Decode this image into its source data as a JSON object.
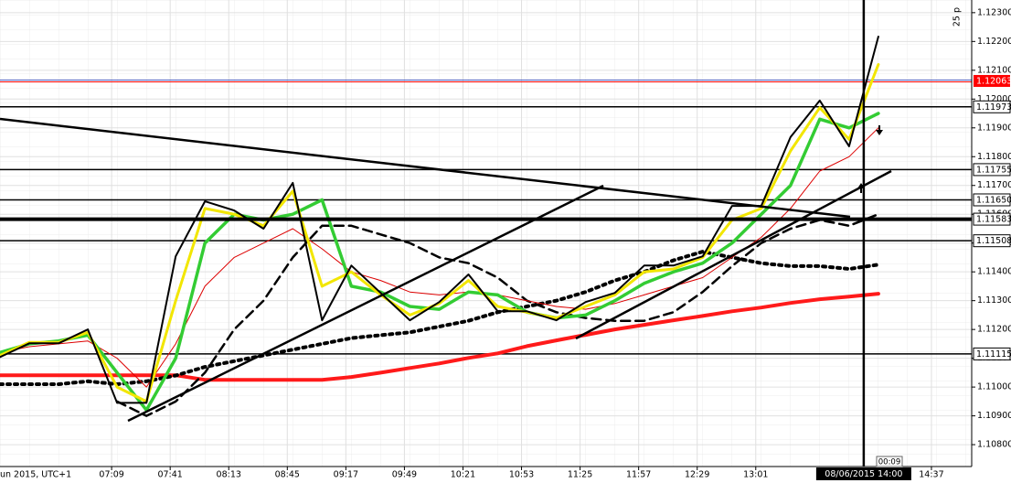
{
  "chart_data": {
    "type": "line",
    "date_label": "un 2015, UTC+1",
    "period_label": "25 p",
    "countdown": "00:09",
    "x": [
      "06:08",
      "06:24",
      "06:40",
      "06:56",
      "07:12",
      "07:28",
      "07:44",
      "08:00",
      "08:16",
      "08:32",
      "08:48",
      "09:04",
      "09:20",
      "09:36",
      "09:52",
      "10:08",
      "10:24",
      "10:40",
      "10:56",
      "11:12",
      "11:28",
      "11:44",
      "12:00",
      "12:16",
      "12:32",
      "12:48",
      "13:04",
      "13:20",
      "13:36",
      "13:52",
      "14:08"
    ],
    "xlim": [
      "06:08",
      "14:59"
    ],
    "xticks": [
      "07:09",
      "07:41",
      "08:13",
      "08:45",
      "09:17",
      "09:49",
      "10:21",
      "10:53",
      "11:25",
      "11:57",
      "12:29",
      "13:01",
      "14:37"
    ],
    "ylim": [
      1.10724,
      1.12344
    ],
    "yticks": [
      {
        "value": 1.123,
        "label": "1.12300"
      },
      {
        "value": 1.122,
        "label": "1.12200"
      },
      {
        "value": 1.121,
        "label": "1.12100"
      },
      {
        "value": 1.12,
        "label": "1.12000"
      },
      {
        "value": 1.119,
        "label": "1.11900"
      },
      {
        "value": 1.118,
        "label": "1.11800"
      },
      {
        "value": 1.117,
        "label": "1.11700"
      },
      {
        "value": 1.116,
        "label": "1.11600"
      },
      {
        "value": 1.115,
        "label": "1.11500"
      },
      {
        "value": 1.114,
        "label": "1.11400"
      },
      {
        "value": 1.113,
        "label": "1.11300"
      },
      {
        "value": 1.112,
        "label": "1.11200"
      },
      {
        "value": 1.111,
        "label": "1.11100"
      },
      {
        "value": 1.11,
        "label": "1.11000"
      },
      {
        "value": 1.109,
        "label": "1.10900"
      },
      {
        "value": 1.108,
        "label": "1.10800"
      }
    ],
    "grid": true,
    "series": [
      {
        "name": "slow-ma",
        "color": "#ff1a1a",
        "width": 4,
        "dash": "none",
        "values": [
          1.11041,
          1.11041,
          1.11041,
          1.11041,
          1.11041,
          1.11041,
          1.11041,
          1.11025,
          1.11025,
          1.11025,
          1.11025,
          1.11025,
          1.11035,
          1.1105,
          1.11066,
          1.11082,
          1.11101,
          1.11117,
          1.11142,
          1.11162,
          1.11181,
          1.112,
          1.11216,
          1.11232,
          1.11247,
          1.11263,
          1.11276,
          1.11292,
          1.11305,
          1.11314,
          1.11324
        ]
      },
      {
        "name": "dotted-ma",
        "color": "#000000",
        "width": 4,
        "dash": "3 5",
        "values": [
          1.1101,
          1.1101,
          1.1101,
          1.1102,
          1.1101,
          1.1102,
          1.1104,
          1.1107,
          1.1109,
          1.1111,
          1.1113,
          1.1115,
          1.1117,
          1.1118,
          1.1119,
          1.1121,
          1.1123,
          1.1126,
          1.1128,
          1.113,
          1.1133,
          1.1137,
          1.114,
          1.1144,
          1.1147,
          1.1145,
          1.1143,
          1.1142,
          1.1142,
          1.1141,
          1.11425
        ]
      },
      {
        "name": "dashed-ma",
        "color": "#000000",
        "width": 2.5,
        "dash": "10 6",
        "values": [
          null,
          null,
          null,
          null,
          1.1095,
          1.109,
          1.1095,
          1.1105,
          1.112,
          1.113,
          1.1145,
          1.1156,
          1.1156,
          1.1153,
          1.115,
          1.1145,
          1.1143,
          1.1138,
          1.113,
          1.1126,
          1.1124,
          1.1123,
          1.1123,
          1.1126,
          1.1133,
          1.1142,
          1.115,
          1.1155,
          1.1158,
          1.1156,
          1.116
        ]
      },
      {
        "name": "red-ma",
        "color": "#dd0000",
        "width": 1,
        "dash": "none",
        "values": [
          1.1112,
          1.1114,
          1.1115,
          1.1116,
          1.111,
          1.11,
          1.1115,
          1.1135,
          1.1145,
          1.115,
          1.1155,
          1.1148,
          1.114,
          1.1137,
          1.1133,
          1.1132,
          1.1133,
          1.1132,
          1.113,
          1.1128,
          1.1127,
          1.1129,
          1.1132,
          1.1135,
          1.1138,
          1.1145,
          1.1152,
          1.1162,
          1.1175,
          1.118,
          1.119
        ]
      },
      {
        "name": "green-ma",
        "color": "#33cc33",
        "width": 3.5,
        "dash": "none",
        "values": [
          1.1112,
          1.1115,
          1.1116,
          1.1118,
          1.1105,
          1.1092,
          1.111,
          1.115,
          1.116,
          1.1158,
          1.116,
          1.1165,
          1.1135,
          1.1133,
          1.1128,
          1.1127,
          1.1133,
          1.1132,
          1.1126,
          1.1124,
          1.1125,
          1.113,
          1.1136,
          1.114,
          1.1143,
          1.115,
          1.116,
          1.117,
          1.1193,
          1.119,
          1.1195
        ]
      },
      {
        "name": "yellow-ma",
        "color": "#f2e600",
        "width": 3,
        "dash": "none",
        "values": [
          1.1111,
          1.11155,
          1.11155,
          1.1119,
          1.11,
          1.1095,
          1.113,
          1.1162,
          1.116,
          1.1156,
          1.1168,
          1.1135,
          1.114,
          1.1132,
          1.1125,
          1.1129,
          1.1137,
          1.1128,
          1.1126,
          1.1124,
          1.1128,
          1.1132,
          1.114,
          1.1141,
          1.1145,
          1.1158,
          1.1162,
          1.1182,
          1.1197,
          1.1186,
          1.1212
        ]
      },
      {
        "name": "price",
        "color": "#000000",
        "width": 2,
        "dash": "none",
        "values": [
          1.11104,
          1.11152,
          1.11152,
          1.112,
          1.10945,
          1.10945,
          1.11454,
          1.11645,
          1.11613,
          1.1155,
          1.11709,
          1.11232,
          1.11422,
          1.11327,
          1.11232,
          1.11295,
          1.11391,
          1.11263,
          1.11263,
          1.11232,
          1.11295,
          1.11327,
          1.11422,
          1.11422,
          1.11454,
          1.11629,
          1.11629,
          1.11868,
          1.11995,
          1.11836,
          1.12217
        ]
      }
    ],
    "levels": {
      "values": [
        1.11973,
        1.11755,
        1.1165,
        1.11583,
        1.11508,
        1.11115
      ],
      "value_labels": [
        "1.11973",
        "1.11755",
        "1.11650",
        "1.11583",
        "1.11508",
        "1.11115"
      ],
      "color": "#000000"
    },
    "current_price": {
      "value": 1.12063,
      "label": "1.12063",
      "color": "#ff0000"
    },
    "crosshair": {
      "x": "14:00",
      "y": 1.11583,
      "x_label": "08/06/2015 14:00"
    }
  }
}
